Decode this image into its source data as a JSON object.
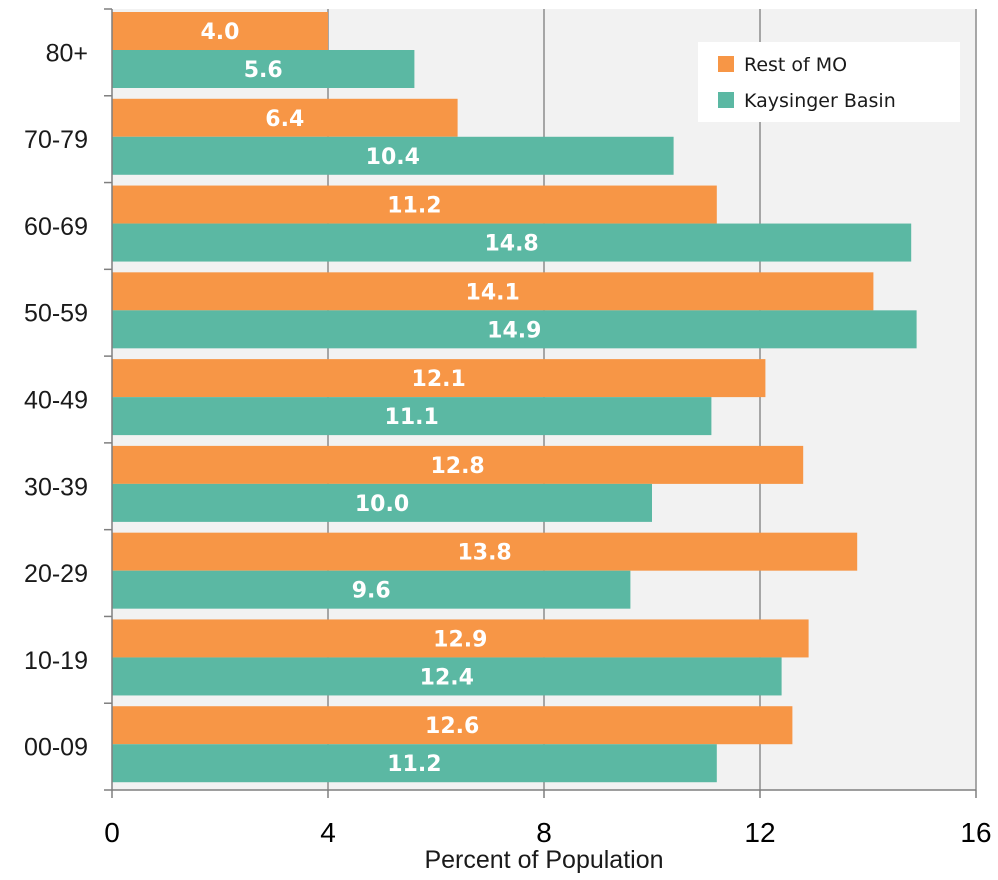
{
  "chart_data": {
    "type": "bar",
    "orientation": "horizontal",
    "categories": [
      "80+",
      "70-79",
      "60-69",
      "50-59",
      "40-49",
      "30-39",
      "20-29",
      "10-19",
      "00-09"
    ],
    "series": [
      {
        "name": "Rest of MO",
        "color": "#F79646",
        "values": [
          4.0,
          6.4,
          11.2,
          14.1,
          12.1,
          12.8,
          13.8,
          12.9,
          12.6
        ],
        "labels": [
          "4.0",
          "6.4",
          "11.2",
          "14.1",
          "12.1",
          "12.8",
          "13.8",
          "12.9",
          "12.6"
        ]
      },
      {
        "name": "Kaysinger Basin",
        "color": "#5BB8A3",
        "values": [
          5.6,
          10.4,
          14.8,
          14.9,
          11.1,
          10.0,
          9.6,
          12.4,
          11.2
        ],
        "labels": [
          "5.6",
          "10.4",
          "14.8",
          "14.9",
          "11.1",
          "10.0",
          "9.6",
          "12.4",
          "11.2"
        ]
      }
    ],
    "xlabel": "Percent of Population",
    "ylabel": "",
    "xlim": [
      0,
      16
    ],
    "xticks": [
      0,
      4,
      8,
      12,
      16
    ],
    "xtick_labels": [
      "0",
      "4",
      "8",
      "12",
      "16"
    ],
    "grid": "vertical",
    "legend_position": "top-right",
    "plot_background": "#F2F2F2"
  }
}
